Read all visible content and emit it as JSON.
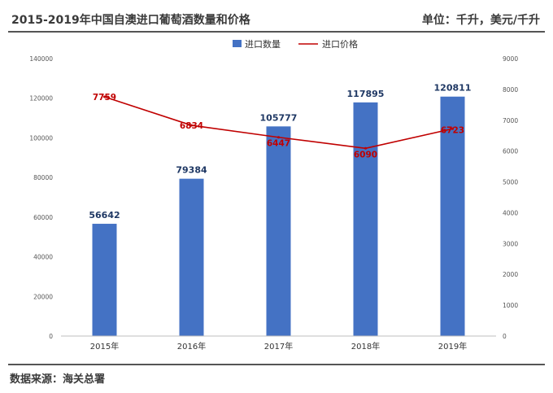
{
  "header": {
    "title": "2015-2019年中国自澳进口葡萄酒数量和价格",
    "unit": "单位：千升，美元/千升"
  },
  "footer": {
    "source": "数据来源：海关总署"
  },
  "chart_data": {
    "type": "bar",
    "categories": [
      "2015年",
      "2016年",
      "2017年",
      "2018年",
      "2019年"
    ],
    "series": [
      {
        "name": "进口数量",
        "type": "bar",
        "axis": "left",
        "color": "#4472c4",
        "values": [
          56642,
          79384,
          105777,
          117895,
          120811
        ]
      },
      {
        "name": "进口价格",
        "type": "line",
        "axis": "right",
        "color": "#c00000",
        "values": [
          7759,
          6834,
          6447,
          6090,
          6723
        ]
      }
    ],
    "y_left": {
      "range": [
        0,
        140000
      ],
      "ticks": [
        "0",
        "20000",
        "40000",
        "60000",
        "80000",
        "100000",
        "120000",
        "140000"
      ]
    },
    "y_right": {
      "range": [
        0,
        9000
      ],
      "ticks": [
        "0",
        "1000",
        "2000",
        "3000",
        "4000",
        "5000",
        "6000",
        "7000",
        "8000",
        "9000"
      ]
    },
    "grid": false,
    "legend_position": "top-center"
  }
}
